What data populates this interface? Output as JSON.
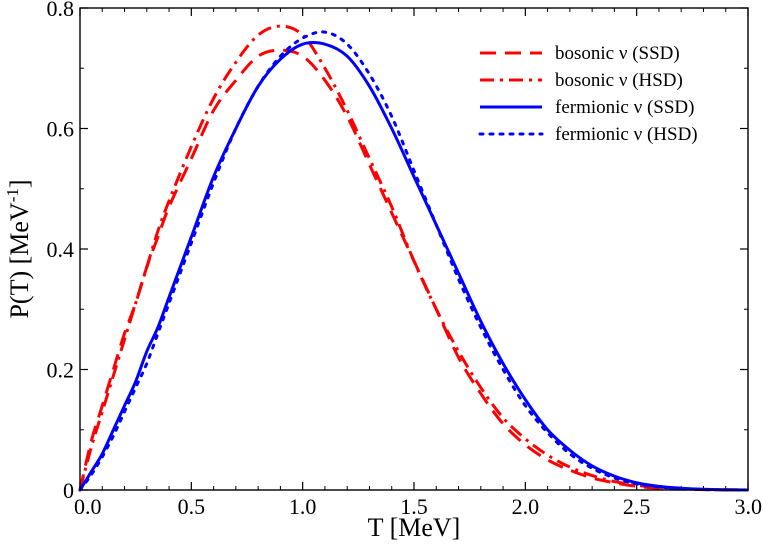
{
  "chart_data": {
    "type": "line",
    "title": "",
    "xlabel": "T [MeV]",
    "ylabel_main": "P(T) [MeV",
    "ylabel_sup": "-1",
    "ylabel_close": "]",
    "xlim": [
      0.0,
      3.0
    ],
    "ylim": [
      0.0,
      0.8
    ],
    "xticks": [
      0.0,
      0.5,
      1.0,
      1.5,
      2.0,
      2.5,
      3.0
    ],
    "xtick_labels": [
      "0.0",
      "0.5",
      "1.0",
      "1.5",
      "2.0",
      "2.5",
      "3.0"
    ],
    "yticks": [
      0.0,
      0.2,
      0.4,
      0.6,
      0.8
    ],
    "ytick_labels": [
      "0",
      "0.2",
      "0.4",
      "0.6",
      "0.8"
    ],
    "grid": false,
    "legend_position": "top-right",
    "series": [
      {
        "name": "bosonic ν (SSD)",
        "color": "#ff0000",
        "dash": "dashed",
        "x": [
          0.0,
          0.05,
          0.1,
          0.15,
          0.2,
          0.25,
          0.3,
          0.35,
          0.4,
          0.5,
          0.6,
          0.7,
          0.8,
          0.9,
          1.0,
          1.1,
          1.2,
          1.3,
          1.4,
          1.5,
          1.6,
          1.7,
          1.8,
          1.9,
          2.0,
          2.1,
          2.2,
          2.3,
          2.4,
          2.5,
          2.6,
          2.7,
          2.8,
          2.9,
          3.0
        ],
        "y": [
          0.0,
          0.08,
          0.14,
          0.2,
          0.26,
          0.31,
          0.37,
          0.42,
          0.47,
          0.55,
          0.63,
          0.68,
          0.72,
          0.73,
          0.72,
          0.68,
          0.62,
          0.54,
          0.46,
          0.38,
          0.3,
          0.22,
          0.16,
          0.11,
          0.075,
          0.05,
          0.033,
          0.02,
          0.012,
          0.006,
          0.003,
          0.0015,
          0.0006,
          0.0002,
          0.0
        ]
      },
      {
        "name": "bosonic ν (HSD)",
        "color": "#ff0000",
        "dash": "dashdot",
        "x": [
          0.0,
          0.05,
          0.1,
          0.15,
          0.2,
          0.25,
          0.3,
          0.35,
          0.4,
          0.5,
          0.6,
          0.7,
          0.8,
          0.9,
          1.0,
          1.1,
          1.2,
          1.3,
          1.4,
          1.5,
          1.6,
          1.7,
          1.8,
          1.9,
          2.0,
          2.1,
          2.2,
          2.3,
          2.4,
          2.5,
          2.6,
          2.7,
          2.8,
          2.9,
          3.0
        ],
        "y": [
          0.0,
          0.07,
          0.13,
          0.19,
          0.25,
          0.31,
          0.37,
          0.43,
          0.48,
          0.57,
          0.65,
          0.71,
          0.755,
          0.77,
          0.755,
          0.7,
          0.63,
          0.55,
          0.47,
          0.38,
          0.3,
          0.23,
          0.17,
          0.12,
          0.085,
          0.058,
          0.038,
          0.024,
          0.014,
          0.008,
          0.004,
          0.002,
          0.0008,
          0.0003,
          0.0
        ]
      },
      {
        "name": "fermionic ν (SSD)",
        "color": "#0000ff",
        "dash": "solid",
        "x": [
          0.0,
          0.05,
          0.1,
          0.15,
          0.2,
          0.25,
          0.3,
          0.35,
          0.4,
          0.5,
          0.6,
          0.7,
          0.8,
          0.9,
          1.0,
          1.1,
          1.2,
          1.3,
          1.4,
          1.5,
          1.6,
          1.7,
          1.8,
          1.9,
          2.0,
          2.1,
          2.2,
          2.3,
          2.4,
          2.5,
          2.6,
          2.7,
          2.8,
          2.9,
          3.0
        ],
        "y": [
          0.0,
          0.03,
          0.06,
          0.1,
          0.14,
          0.18,
          0.23,
          0.27,
          0.32,
          0.42,
          0.52,
          0.6,
          0.67,
          0.715,
          0.74,
          0.74,
          0.72,
          0.67,
          0.6,
          0.52,
          0.44,
          0.36,
          0.28,
          0.21,
          0.15,
          0.1,
          0.066,
          0.04,
          0.023,
          0.012,
          0.006,
          0.003,
          0.0012,
          0.0004,
          0.0
        ]
      },
      {
        "name": "fermionic ν (HSD)",
        "color": "#0000ff",
        "dash": "dotted",
        "x": [
          0.0,
          0.05,
          0.1,
          0.15,
          0.2,
          0.25,
          0.3,
          0.35,
          0.4,
          0.5,
          0.6,
          0.7,
          0.8,
          0.9,
          1.0,
          1.1,
          1.2,
          1.3,
          1.4,
          1.5,
          1.6,
          1.7,
          1.8,
          1.9,
          2.0,
          2.1,
          2.2,
          2.3,
          2.4,
          2.5,
          2.6,
          2.7,
          2.8,
          2.9,
          3.0
        ],
        "y": [
          0.0,
          0.025,
          0.055,
          0.09,
          0.13,
          0.17,
          0.21,
          0.26,
          0.31,
          0.41,
          0.51,
          0.6,
          0.67,
          0.72,
          0.75,
          0.76,
          0.74,
          0.69,
          0.62,
          0.53,
          0.44,
          0.35,
          0.27,
          0.2,
          0.14,
          0.095,
          0.06,
          0.036,
          0.02,
          0.01,
          0.005,
          0.002,
          0.0008,
          0.0003,
          0.0
        ]
      }
    ]
  }
}
